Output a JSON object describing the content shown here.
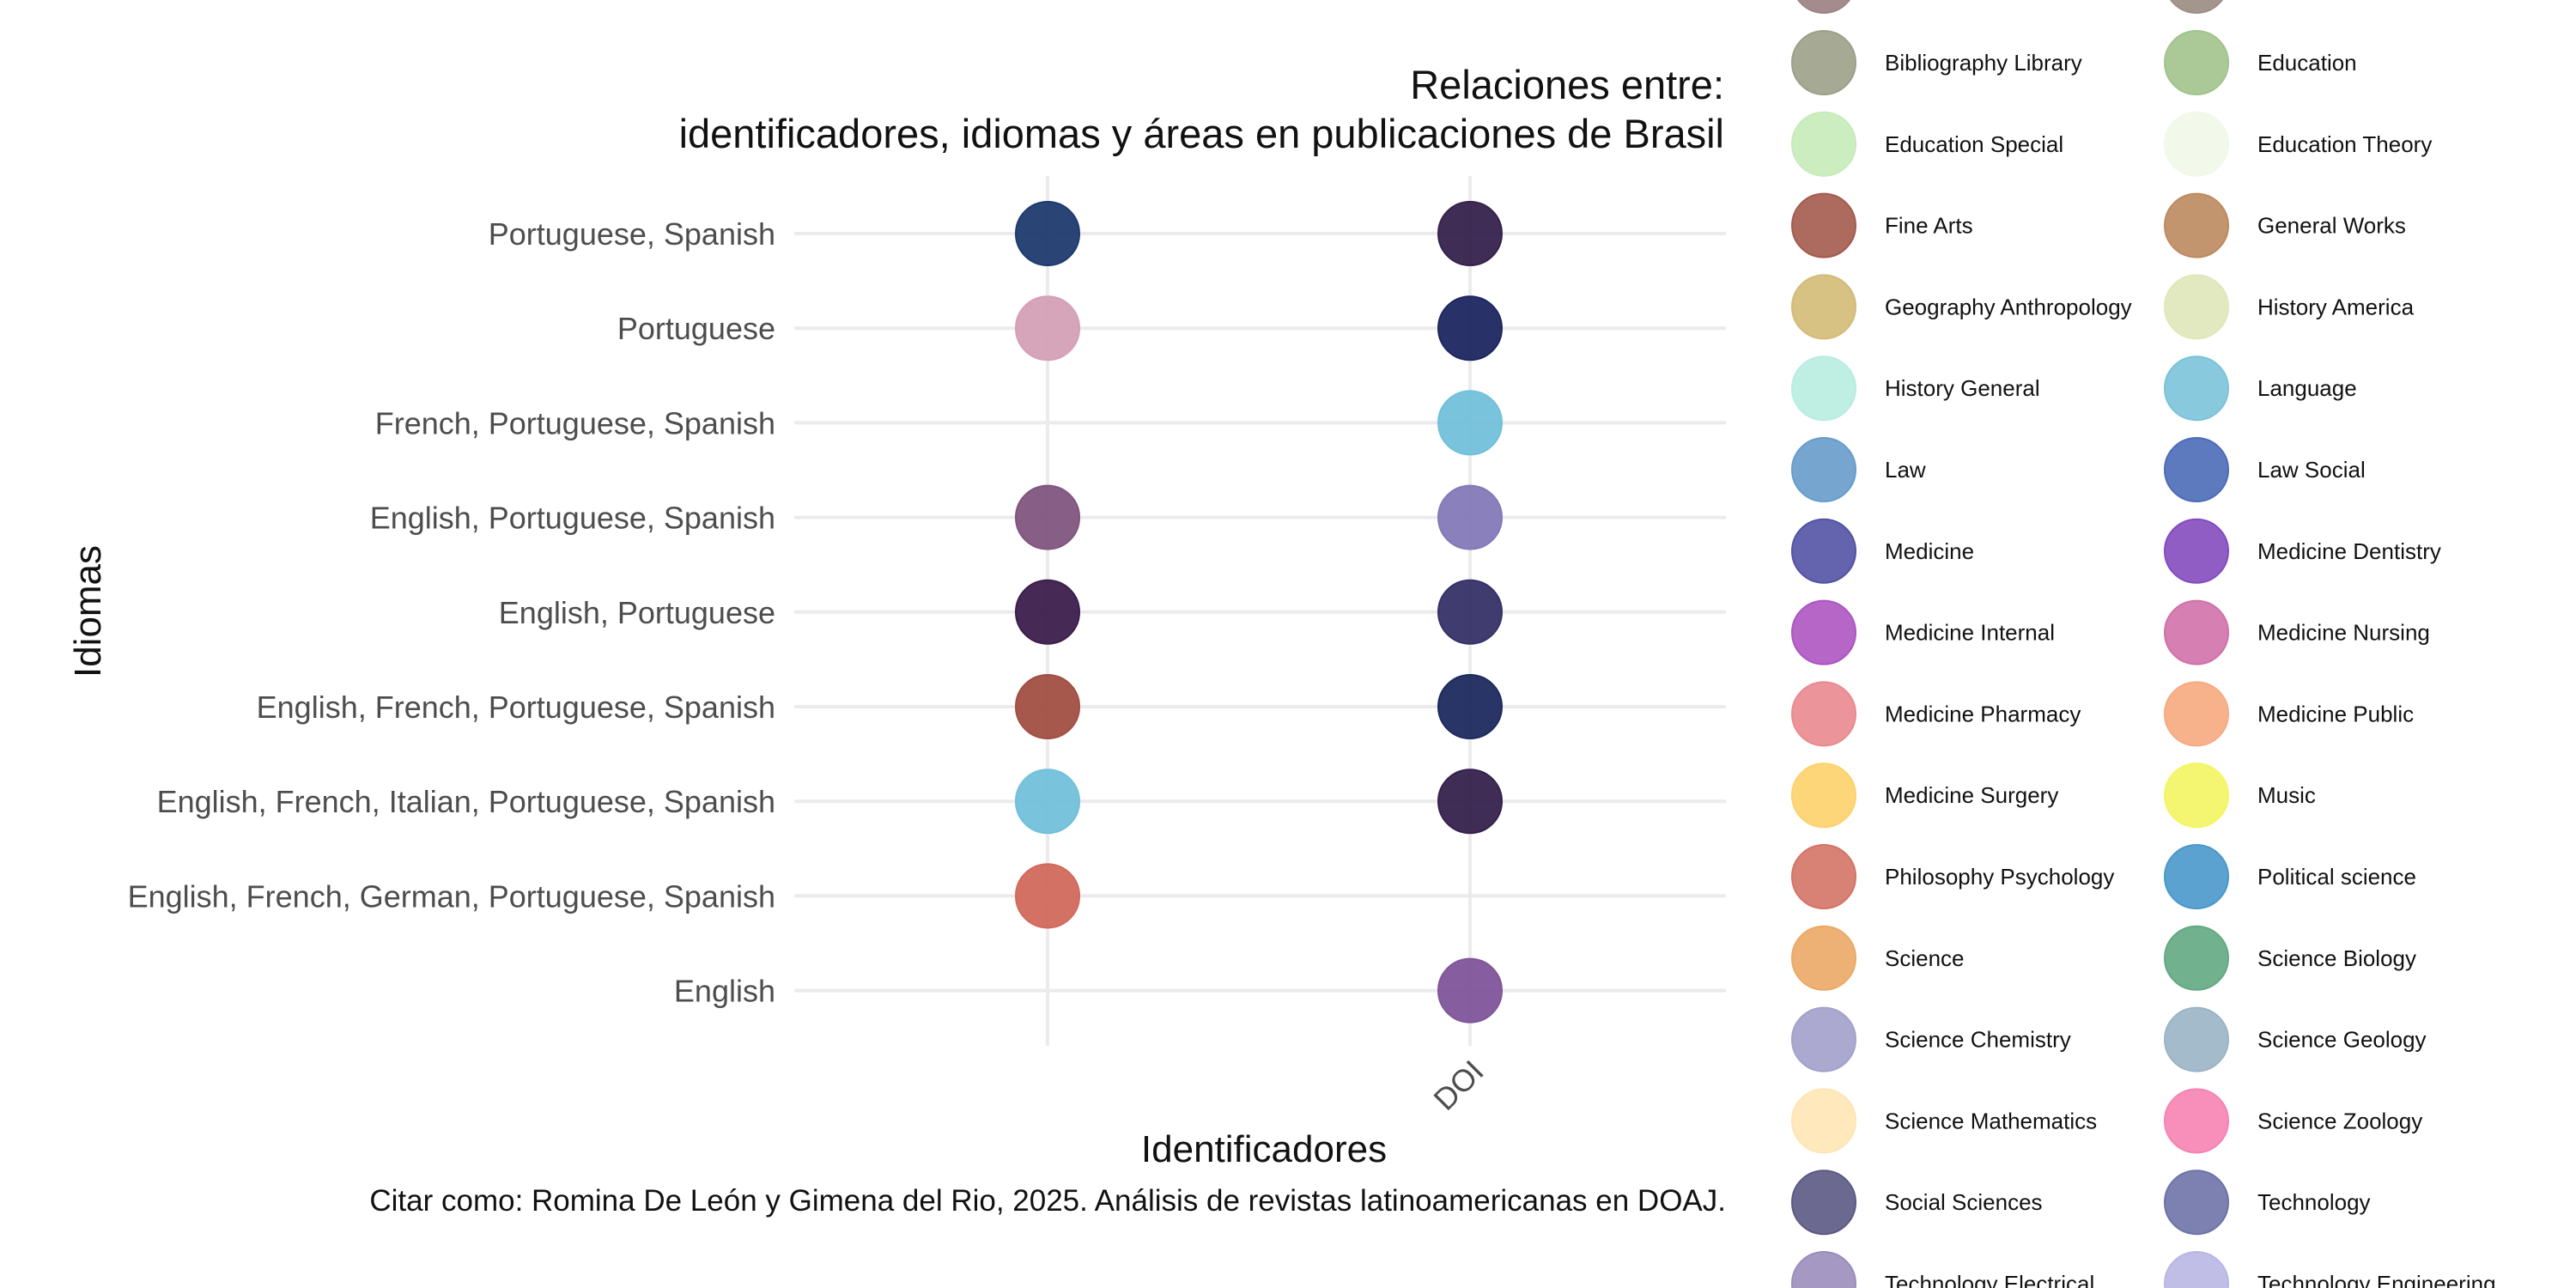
{
  "chart_data": {
    "type": "scatter",
    "title": [
      "Relaciones entre:",
      "identificadores, idiomas y áreas en publicaciones de Brasil"
    ],
    "xlabel": "Identificadores",
    "ylabel": "Idiomas",
    "caption": "Citar como: Romina De León y Gimena del Rio, 2025. Análisis de revistas latinoamericanas en DOAJ.",
    "x_categories": [
      "",
      "DOI"
    ],
    "y_categories": [
      "English",
      "English, French, German, Portuguese, Spanish",
      "English, French, Italian, Portuguese, Spanish",
      "English, French, Portuguese, Spanish",
      "English, Portuguese",
      "English, Portuguese, Spanish",
      "French, Portuguese, Spanish",
      "Portuguese",
      "Portuguese, Spanish"
    ],
    "points": [
      {
        "x": "",
        "y": "Portuguese, Spanish",
        "color": "#1f3b6e"
      },
      {
        "x": "DOI",
        "y": "Portuguese, Spanish",
        "color": "#35224d"
      },
      {
        "x": "",
        "y": "Portuguese",
        "color": "#d4a0b5"
      },
      {
        "x": "DOI",
        "y": "Portuguese",
        "color": "#1c2760"
      },
      {
        "x": "DOI",
        "y": "French, Portuguese, Spanish",
        "color": "#72c0da"
      },
      {
        "x": "",
        "y": "English, Portuguese, Spanish",
        "color": "#80557f"
      },
      {
        "x": "DOI",
        "y": "English, Portuguese, Spanish",
        "color": "#8379b8"
      },
      {
        "x": "",
        "y": "English, Portuguese",
        "color": "#3c1e4c"
      },
      {
        "x": "DOI",
        "y": "English, Portuguese",
        "color": "#363168"
      },
      {
        "x": "",
        "y": "English, French, Portuguese, Spanish",
        "color": "#a14f43"
      },
      {
        "x": "DOI",
        "y": "English, French, Portuguese, Spanish",
        "color": "#1c2a5e"
      },
      {
        "x": "",
        "y": "English, French, Italian, Portuguese, Spanish",
        "color": "#72c0da"
      },
      {
        "x": "DOI",
        "y": "English, French, Italian, Portuguese, Spanish",
        "color": "#35224d"
      },
      {
        "x": "",
        "y": "English, French, German, Portuguese, Spanish",
        "color": "#d16a5c"
      },
      {
        "x": "DOI",
        "y": "English",
        "color": "#80559a"
      }
    ],
    "grid": true,
    "legend_placement": "right",
    "legend": [
      {
        "label": "Bibliography Library",
        "color": "#9ca088"
      },
      {
        "label": "Education",
        "color": "#a1c38c"
      },
      {
        "label": "Education Special",
        "color": "#c6ebb8"
      },
      {
        "label": "Education Theory",
        "color": "#f1f8e9"
      },
      {
        "label": "Fine Arts",
        "color": "#a45a4e"
      },
      {
        "label": "General Works",
        "color": "#bd8a5f"
      },
      {
        "label": "Geography Anthropology",
        "color": "#d3bb77"
      },
      {
        "label": "History America",
        "color": "#dfe7b9"
      },
      {
        "label": "History General",
        "color": "#b8ede0"
      },
      {
        "label": "Language",
        "color": "#7bc3d9"
      },
      {
        "label": "Law",
        "color": "#679ccb"
      },
      {
        "label": "Law Social",
        "color": "#4c6bb8"
      },
      {
        "label": "Medicine",
        "color": "#5352a5"
      },
      {
        "label": "Medicine Dentistry",
        "color": "#844bbf"
      },
      {
        "label": "Medicine Internal",
        "color": "#ad55c1"
      },
      {
        "label": "Medicine Nursing",
        "color": "#d071aa"
      },
      {
        "label": "Medicine Pharmacy",
        "color": "#e9898f"
      },
      {
        "label": "Medicine Public",
        "color": "#f6aa80"
      },
      {
        "label": "Medicine Surgery",
        "color": "#fed16b"
      },
      {
        "label": "Music",
        "color": "#f3f562"
      },
      {
        "label": "Philosophy Psychology",
        "color": "#d47366"
      },
      {
        "label": "Political science",
        "color": "#4998cb"
      },
      {
        "label": "Science",
        "color": "#eca866"
      },
      {
        "label": "Science Biology",
        "color": "#63a982"
      },
      {
        "label": "Science Chemistry",
        "color": "#a3a0cc"
      },
      {
        "label": "Science Geology",
        "color": "#9ab4c6"
      },
      {
        "label": "Science Mathematics",
        "color": "#fee5b5"
      },
      {
        "label": "Science Zoology",
        "color": "#f683b3"
      },
      {
        "label": "Social Sciences",
        "color": "#5c5985"
      },
      {
        "label": "Technology",
        "color": "#6e73a8"
      },
      {
        "label": "Technology Electrical",
        "color": "#9b8dbc"
      },
      {
        "label": "Technology Engineering",
        "color": "#b9b6e3"
      }
    ],
    "legend_partial_top": [
      {
        "color": "#9f8587"
      },
      {
        "color": "#9f8f87"
      }
    ]
  }
}
